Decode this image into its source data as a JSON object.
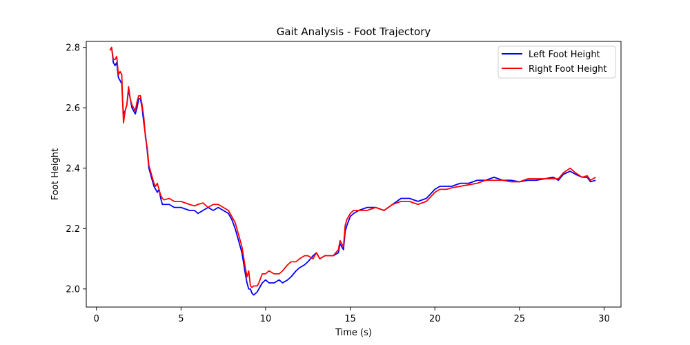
{
  "chart_data": {
    "type": "line",
    "title": "Gait Analysis - Foot Trajectory",
    "xlabel": "Time (s)",
    "ylabel": "Foot Height",
    "xlim": [
      -0.6,
      31.0
    ],
    "ylim": [
      1.94,
      2.82
    ],
    "xticks": [
      0,
      5,
      10,
      15,
      20,
      25,
      30
    ],
    "yticks": [
      2.0,
      2.2,
      2.4,
      2.6,
      2.8
    ],
    "ytick_labels": [
      "2.0",
      "2.2",
      "2.4",
      "2.6",
      "2.8"
    ],
    "grid": false,
    "legend_position": "upper right",
    "series": [
      {
        "name": "Left Foot Height",
        "color": "#0000ff",
        "points": [
          [
            0.8,
            2.79
          ],
          [
            0.9,
            2.8
          ],
          [
            1.0,
            2.75
          ],
          [
            1.1,
            2.74
          ],
          [
            1.2,
            2.75
          ],
          [
            1.3,
            2.7
          ],
          [
            1.4,
            2.69
          ],
          [
            1.5,
            2.68
          ],
          [
            1.55,
            2.62
          ],
          [
            1.6,
            2.58
          ],
          [
            1.7,
            2.59
          ],
          [
            1.8,
            2.61
          ],
          [
            1.9,
            2.66
          ],
          [
            2.0,
            2.63
          ],
          [
            2.1,
            2.6
          ],
          [
            2.3,
            2.58
          ],
          [
            2.4,
            2.6
          ],
          [
            2.5,
            2.63
          ],
          [
            2.6,
            2.63
          ],
          [
            2.7,
            2.6
          ],
          [
            2.8,
            2.55
          ],
          [
            2.9,
            2.51
          ],
          [
            3.0,
            2.46
          ],
          [
            3.1,
            2.4
          ],
          [
            3.2,
            2.38
          ],
          [
            3.3,
            2.36
          ],
          [
            3.4,
            2.34
          ],
          [
            3.5,
            2.33
          ],
          [
            3.6,
            2.32
          ],
          [
            3.7,
            2.33
          ],
          [
            3.8,
            2.3
          ],
          [
            3.9,
            2.28
          ],
          [
            4.0,
            2.28
          ],
          [
            4.3,
            2.28
          ],
          [
            4.6,
            2.27
          ],
          [
            5.0,
            2.27
          ],
          [
            5.5,
            2.26
          ],
          [
            5.8,
            2.26
          ],
          [
            6.0,
            2.25
          ],
          [
            6.3,
            2.26
          ],
          [
            6.6,
            2.27
          ],
          [
            6.9,
            2.26
          ],
          [
            7.2,
            2.27
          ],
          [
            7.5,
            2.26
          ],
          [
            7.8,
            2.25
          ],
          [
            8.0,
            2.23
          ],
          [
            8.2,
            2.2
          ],
          [
            8.4,
            2.16
          ],
          [
            8.6,
            2.12
          ],
          [
            8.8,
            2.05
          ],
          [
            8.9,
            2.02
          ],
          [
            9.0,
            2.0
          ],
          [
            9.1,
            2.0
          ],
          [
            9.2,
            1.985
          ],
          [
            9.3,
            1.98
          ],
          [
            9.5,
            1.99
          ],
          [
            9.6,
            2.0
          ],
          [
            9.8,
            2.02
          ],
          [
            10.0,
            2.03
          ],
          [
            10.2,
            2.02
          ],
          [
            10.5,
            2.02
          ],
          [
            10.8,
            2.03
          ],
          [
            11.0,
            2.02
          ],
          [
            11.3,
            2.03
          ],
          [
            11.5,
            2.04
          ],
          [
            11.8,
            2.06
          ],
          [
            12.0,
            2.07
          ],
          [
            12.3,
            2.08
          ],
          [
            12.5,
            2.09
          ],
          [
            12.8,
            2.11
          ],
          [
            13.0,
            2.12
          ],
          [
            13.2,
            2.1
          ],
          [
            13.5,
            2.11
          ],
          [
            14.0,
            2.11
          ],
          [
            14.3,
            2.12
          ],
          [
            14.4,
            2.15
          ],
          [
            14.5,
            2.14
          ],
          [
            14.6,
            2.13
          ],
          [
            14.7,
            2.19
          ],
          [
            14.8,
            2.21
          ],
          [
            15.0,
            2.24
          ],
          [
            15.2,
            2.25
          ],
          [
            15.5,
            2.26
          ],
          [
            16.0,
            2.27
          ],
          [
            16.5,
            2.27
          ],
          [
            17.0,
            2.26
          ],
          [
            17.5,
            2.28
          ],
          [
            18.0,
            2.3
          ],
          [
            18.5,
            2.3
          ],
          [
            19.0,
            2.29
          ],
          [
            19.5,
            2.3
          ],
          [
            20.0,
            2.33
          ],
          [
            20.3,
            2.34
          ],
          [
            20.7,
            2.34
          ],
          [
            21.0,
            2.34
          ],
          [
            21.5,
            2.35
          ],
          [
            22.0,
            2.35
          ],
          [
            22.5,
            2.36
          ],
          [
            23.0,
            2.36
          ],
          [
            23.5,
            2.37
          ],
          [
            24.0,
            2.36
          ],
          [
            24.5,
            2.36
          ],
          [
            25.0,
            2.355
          ],
          [
            25.5,
            2.36
          ],
          [
            26.0,
            2.36
          ],
          [
            26.5,
            2.365
          ],
          [
            27.0,
            2.37
          ],
          [
            27.3,
            2.36
          ],
          [
            27.6,
            2.38
          ],
          [
            28.0,
            2.39
          ],
          [
            28.3,
            2.38
          ],
          [
            28.7,
            2.37
          ],
          [
            29.0,
            2.37
          ],
          [
            29.2,
            2.355
          ],
          [
            29.5,
            2.36
          ]
        ]
      },
      {
        "name": "Right Foot Height",
        "color": "#ff0000",
        "points": [
          [
            0.8,
            2.79
          ],
          [
            0.9,
            2.8
          ],
          [
            1.0,
            2.76
          ],
          [
            1.1,
            2.76
          ],
          [
            1.2,
            2.77
          ],
          [
            1.3,
            2.71
          ],
          [
            1.4,
            2.72
          ],
          [
            1.5,
            2.71
          ],
          [
            1.55,
            2.62
          ],
          [
            1.6,
            2.55
          ],
          [
            1.7,
            2.59
          ],
          [
            1.8,
            2.61
          ],
          [
            1.9,
            2.67
          ],
          [
            2.0,
            2.63
          ],
          [
            2.1,
            2.61
          ],
          [
            2.3,
            2.59
          ],
          [
            2.4,
            2.62
          ],
          [
            2.5,
            2.64
          ],
          [
            2.6,
            2.64
          ],
          [
            2.7,
            2.61
          ],
          [
            2.8,
            2.57
          ],
          [
            2.9,
            2.5
          ],
          [
            3.0,
            2.47
          ],
          [
            3.1,
            2.41
          ],
          [
            3.2,
            2.39
          ],
          [
            3.3,
            2.37
          ],
          [
            3.4,
            2.35
          ],
          [
            3.5,
            2.34
          ],
          [
            3.6,
            2.35
          ],
          [
            3.7,
            2.33
          ],
          [
            3.8,
            2.31
          ],
          [
            3.9,
            2.3
          ],
          [
            4.0,
            2.295
          ],
          [
            4.3,
            2.3
          ],
          [
            4.6,
            2.29
          ],
          [
            5.0,
            2.29
          ],
          [
            5.5,
            2.28
          ],
          [
            5.8,
            2.275
          ],
          [
            6.0,
            2.28
          ],
          [
            6.3,
            2.285
          ],
          [
            6.6,
            2.27
          ],
          [
            6.9,
            2.28
          ],
          [
            7.2,
            2.28
          ],
          [
            7.5,
            2.27
          ],
          [
            7.8,
            2.26
          ],
          [
            8.0,
            2.24
          ],
          [
            8.2,
            2.22
          ],
          [
            8.4,
            2.18
          ],
          [
            8.6,
            2.14
          ],
          [
            8.8,
            2.07
          ],
          [
            8.9,
            2.04
          ],
          [
            9.0,
            2.06
          ],
          [
            9.1,
            2.01
          ],
          [
            9.2,
            2.005
          ],
          [
            9.3,
            2.01
          ],
          [
            9.5,
            2.01
          ],
          [
            9.6,
            2.02
          ],
          [
            9.8,
            2.05
          ],
          [
            10.0,
            2.05
          ],
          [
            10.2,
            2.06
          ],
          [
            10.5,
            2.05
          ],
          [
            10.8,
            2.05
          ],
          [
            11.0,
            2.06
          ],
          [
            11.3,
            2.08
          ],
          [
            11.5,
            2.09
          ],
          [
            11.8,
            2.09
          ],
          [
            12.0,
            2.1
          ],
          [
            12.3,
            2.11
          ],
          [
            12.5,
            2.11
          ],
          [
            12.8,
            2.1
          ],
          [
            13.0,
            2.12
          ],
          [
            13.2,
            2.1
          ],
          [
            13.5,
            2.11
          ],
          [
            14.0,
            2.11
          ],
          [
            14.3,
            2.13
          ],
          [
            14.4,
            2.16
          ],
          [
            14.5,
            2.15
          ],
          [
            14.6,
            2.14
          ],
          [
            14.7,
            2.21
          ],
          [
            14.8,
            2.23
          ],
          [
            15.0,
            2.25
          ],
          [
            15.2,
            2.26
          ],
          [
            15.5,
            2.26
          ],
          [
            16.0,
            2.26
          ],
          [
            16.5,
            2.27
          ],
          [
            17.0,
            2.26
          ],
          [
            17.5,
            2.28
          ],
          [
            18.0,
            2.29
          ],
          [
            18.5,
            2.29
          ],
          [
            19.0,
            2.28
          ],
          [
            19.5,
            2.29
          ],
          [
            20.0,
            2.32
          ],
          [
            20.3,
            2.33
          ],
          [
            20.7,
            2.33
          ],
          [
            21.0,
            2.335
          ],
          [
            21.5,
            2.34
          ],
          [
            22.0,
            2.345
          ],
          [
            22.5,
            2.35
          ],
          [
            23.0,
            2.36
          ],
          [
            23.5,
            2.36
          ],
          [
            24.0,
            2.36
          ],
          [
            24.5,
            2.355
          ],
          [
            25.0,
            2.355
          ],
          [
            25.5,
            2.365
          ],
          [
            26.0,
            2.365
          ],
          [
            26.5,
            2.365
          ],
          [
            27.0,
            2.365
          ],
          [
            27.3,
            2.365
          ],
          [
            27.6,
            2.385
          ],
          [
            28.0,
            2.4
          ],
          [
            28.3,
            2.385
          ],
          [
            28.7,
            2.37
          ],
          [
            29.0,
            2.375
          ],
          [
            29.2,
            2.36
          ],
          [
            29.5,
            2.37
          ]
        ]
      }
    ]
  }
}
